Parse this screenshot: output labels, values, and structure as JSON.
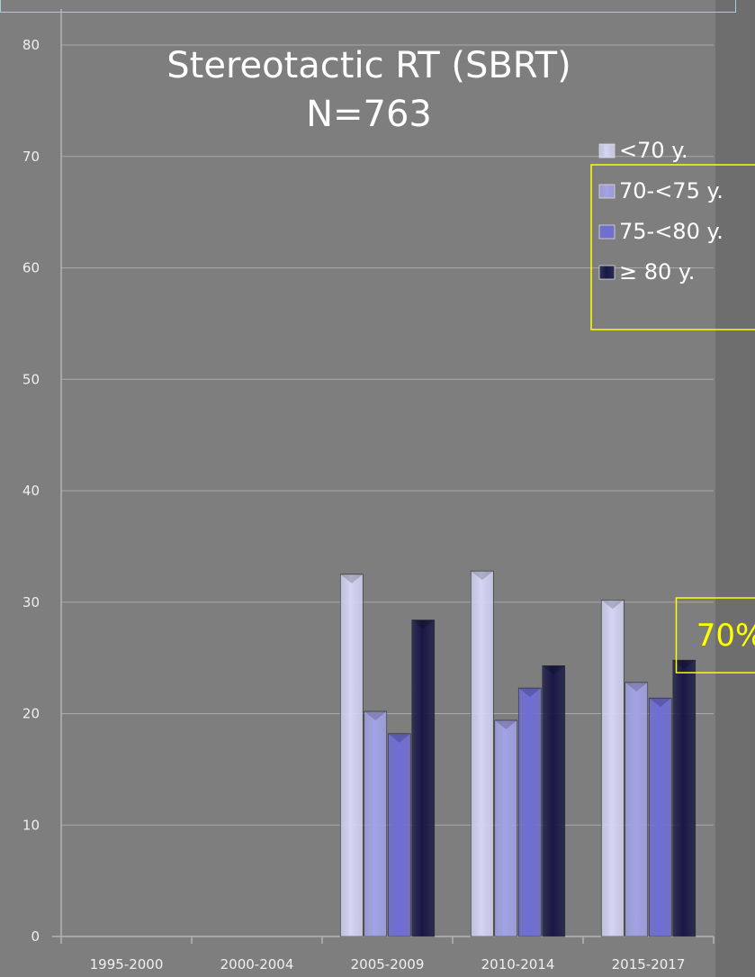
{
  "chart_data": {
    "type": "bar",
    "title_lines": [
      "Stereotactic RT (SBRT)",
      "N=763"
    ],
    "categories": [
      "1995-2000",
      "2000-2004",
      "2005-2009",
      "2010-2014",
      "2015-2017"
    ],
    "series": [
      {
        "name": "<70 y.",
        "color": "#d4d4f4",
        "values": [
          null,
          null,
          32.5,
          32.8,
          30.2
        ]
      },
      {
        "name": "70-<75 y.",
        "color": "#a2a2e6",
        "values": [
          null,
          null,
          20.2,
          19.4,
          22.8
        ]
      },
      {
        "name": "75-<80 y.",
        "color": "#6e6ed6",
        "values": [
          null,
          null,
          18.2,
          22.3,
          21.4
        ]
      },
      {
        "name": "≥ 80 y.",
        "color": "#181846",
        "values": [
          null,
          null,
          28.4,
          24.3,
          24.8
        ]
      }
    ],
    "ylim": [
      0,
      80
    ],
    "yticks": [
      0,
      10,
      20,
      30,
      40,
      50,
      60,
      70,
      80
    ],
    "grid": true,
    "legend_position": "right",
    "annotations": [
      {
        "text": "70%",
        "color": "#ffff00",
        "category": "2015-2017"
      }
    ]
  }
}
